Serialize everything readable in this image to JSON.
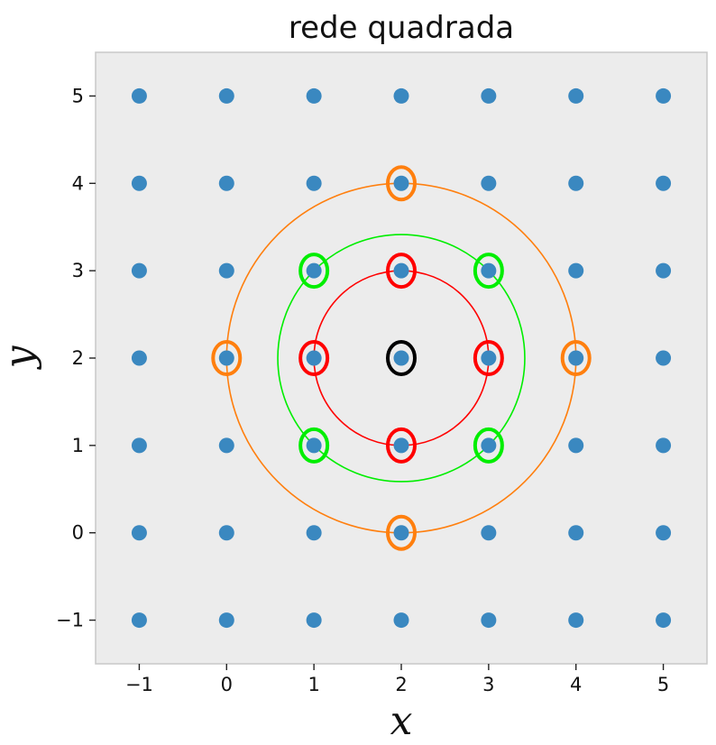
{
  "chart_data": {
    "type": "scatter",
    "title": "rede quadrada",
    "xlabel": "x",
    "ylabel": "y",
    "xlim": [
      -1.5,
      5.5
    ],
    "ylim": [
      -1.5,
      5.5
    ],
    "xticks": [
      -1,
      0,
      1,
      2,
      3,
      4,
      5
    ],
    "yticks": [
      -1,
      0,
      1,
      2,
      3,
      4,
      5
    ],
    "xtick_labels": [
      "−1",
      "0",
      "1",
      "2",
      "3",
      "4",
      "5"
    ],
    "ytick_labels": [
      "−1",
      "0",
      "1",
      "2",
      "3",
      "4",
      "5"
    ],
    "grid": false,
    "background": "#ececec",
    "point_color": "#3a88c0",
    "lattice": {
      "x": [
        -1,
        0,
        1,
        2,
        3,
        4,
        5
      ],
      "y": [
        -1,
        0,
        1,
        2,
        3,
        4,
        5
      ]
    },
    "circles": [
      {
        "center": [
          2,
          2
        ],
        "radius": 1,
        "color": "#ff0000"
      },
      {
        "center": [
          2,
          2
        ],
        "radius": 1.414,
        "color": "#00ee00"
      },
      {
        "center": [
          2,
          2
        ],
        "radius": 2,
        "color": "#ff7f0e"
      }
    ],
    "highlights": [
      {
        "x": 2,
        "y": 2,
        "color": "#000000"
      },
      {
        "x": 1,
        "y": 2,
        "color": "#ff0000"
      },
      {
        "x": 3,
        "y": 2,
        "color": "#ff0000"
      },
      {
        "x": 2,
        "y": 1,
        "color": "#ff0000"
      },
      {
        "x": 2,
        "y": 3,
        "color": "#ff0000"
      },
      {
        "x": 1,
        "y": 1,
        "color": "#00ee00"
      },
      {
        "x": 3,
        "y": 1,
        "color": "#00ee00"
      },
      {
        "x": 1,
        "y": 3,
        "color": "#00ee00"
      },
      {
        "x": 3,
        "y": 3,
        "color": "#00ee00"
      },
      {
        "x": 0,
        "y": 2,
        "color": "#ff7f0e"
      },
      {
        "x": 4,
        "y": 2,
        "color": "#ff7f0e"
      },
      {
        "x": 2,
        "y": 0,
        "color": "#ff7f0e"
      },
      {
        "x": 2,
        "y": 4,
        "color": "#ff7f0e"
      }
    ]
  }
}
